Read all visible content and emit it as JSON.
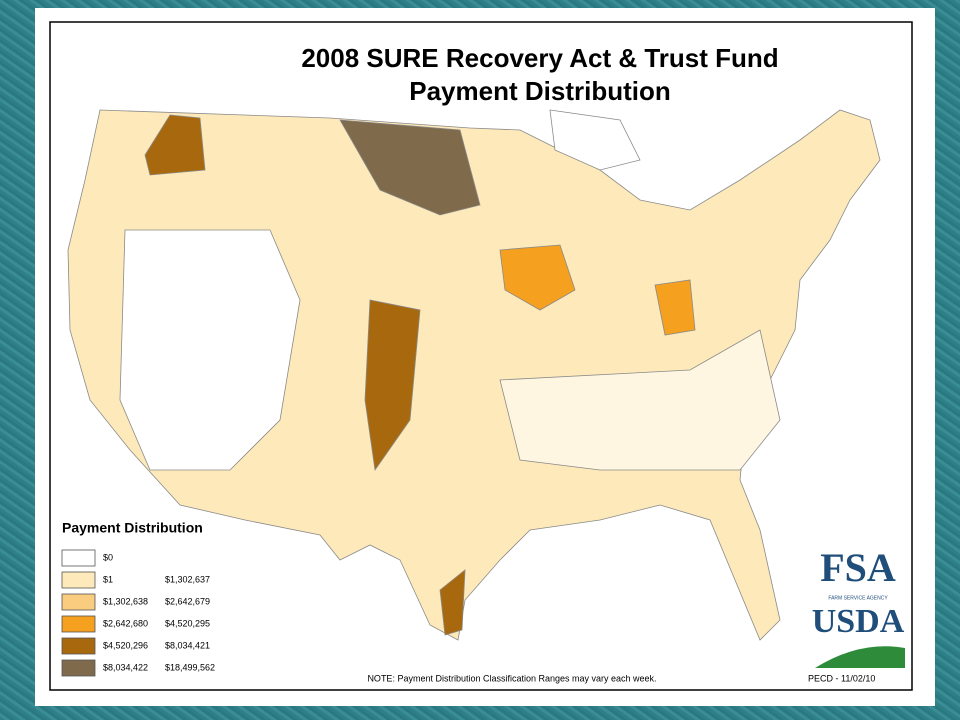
{
  "header": {
    "title_line1": "2008 SURE Recovery Act & Trust Fund",
    "title_line2": "Payment Distribution"
  },
  "legend": {
    "title": "Payment Distribution",
    "items": [
      {
        "color": "#ffffff",
        "low": "$0"
      },
      {
        "color": "#fde9b9",
        "low": "$1",
        "high": "$1,302,637"
      },
      {
        "color": "#f9cc80",
        "low": "$1,302,638",
        "high": "$2,642,679"
      },
      {
        "color": "#f5a01e",
        "low": "$2,642,680",
        "high": "$4,520,295"
      },
      {
        "color": "#a8690e",
        "low": "$4,520,296",
        "high": "$8,034,421"
      },
      {
        "color": "#7f6a4c",
        "low": "$8,034,422",
        "high": "$18,499,562"
      }
    ]
  },
  "note": "NOTE:  Payment Distribution Classification Ranges may vary each week.",
  "stamp": "PECD - 11/02/10",
  "logos": {
    "fsa": "FSA",
    "fsa_sub": "FARM SERVICE AGENCY",
    "usda": "USDA"
  }
}
